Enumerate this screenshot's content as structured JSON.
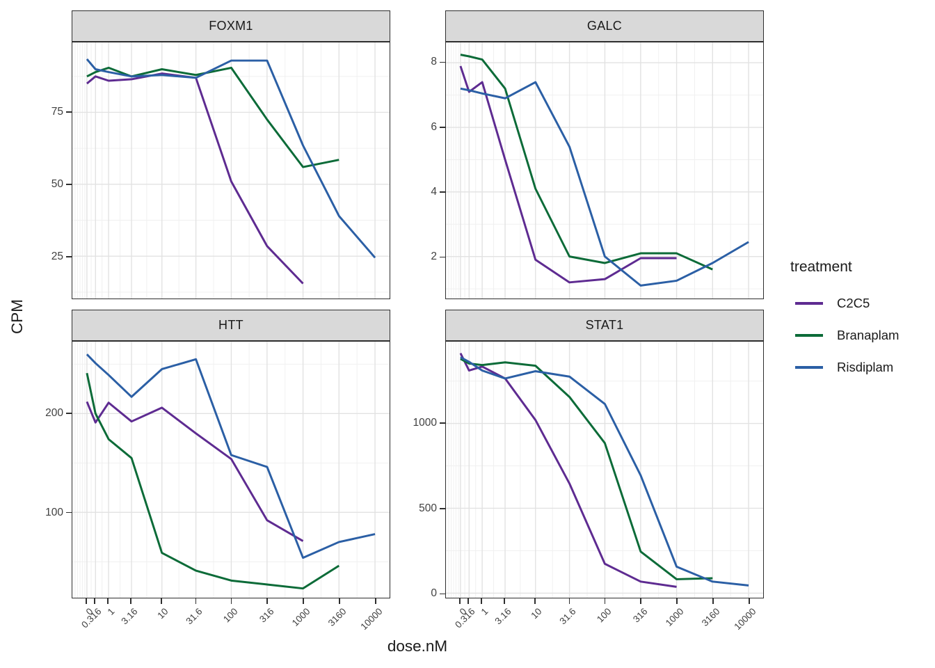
{
  "figure": {
    "y_axis_label": "CPM",
    "x_axis_label": "dose.nM",
    "x_tick_labels": [
      "0",
      "0.316",
      "1",
      "3.16",
      "10",
      "31.6",
      "100",
      "316",
      "1000",
      "3160",
      "10000"
    ],
    "doses": [
      0,
      0.316,
      1,
      3.16,
      10,
      31.6,
      100,
      316,
      1000,
      3160,
      10000
    ]
  },
  "legend": {
    "title": "treatment",
    "items": [
      {
        "label": "C2C5",
        "color": "#5e2b91"
      },
      {
        "label": "Branaplam",
        "color": "#0c6b38"
      },
      {
        "label": "Risdiplam",
        "color": "#2b5fa5"
      }
    ]
  },
  "chart_data": [
    {
      "type": "line",
      "title": "FOXM1",
      "xlabel": "dose.nM",
      "ylabel": "CPM",
      "x_scale": "log10(dose+1)",
      "ylim": [
        10.3,
        99.3
      ],
      "yticks": [
        25,
        50,
        75
      ],
      "series": [
        {
          "name": "C2C5",
          "values": [
            85,
            87.5,
            86,
            86.5,
            88.5,
            87,
            51,
            28.5,
            15.5
          ]
        },
        {
          "name": "Branaplam",
          "values": [
            87.5,
            89,
            90.5,
            87.5,
            90,
            88,
            90.5,
            72.5,
            56,
            58.5
          ]
        },
        {
          "name": "Risdiplam",
          "values": [
            93.5,
            90,
            89,
            87.5,
            88,
            87,
            93,
            93,
            63.5,
            39,
            24.5
          ]
        }
      ]
    },
    {
      "type": "line",
      "title": "GALC",
      "xlabel": "dose.nM",
      "ylabel": "CPM",
      "x_scale": "log10(dose+1)",
      "ylim": [
        0.7,
        8.63
      ],
      "yticks": [
        2,
        4,
        6,
        8
      ],
      "series": [
        {
          "name": "C2C5",
          "values": [
            7.9,
            7.1,
            7.4,
            5.0,
            1.9,
            1.2,
            1.3,
            1.95,
            1.95
          ]
        },
        {
          "name": "Branaplam",
          "values": [
            8.25,
            8.2,
            8.1,
            7.2,
            4.1,
            2.0,
            1.8,
            2.1,
            2.1,
            1.6
          ]
        },
        {
          "name": "Risdiplam",
          "values": [
            7.2,
            7.15,
            7.05,
            6.9,
            7.4,
            5.4,
            2.0,
            1.1,
            1.25,
            1.8,
            2.45
          ]
        }
      ]
    },
    {
      "type": "line",
      "title": "HTT",
      "xlabel": "dose.nM",
      "ylabel": "CPM",
      "x_scale": "log10(dose+1)",
      "ylim": [
        13.6,
        272.8
      ],
      "yticks": [
        100,
        200
      ],
      "series": [
        {
          "name": "C2C5",
          "values": [
            212,
            191,
            211,
            192,
            206,
            180,
            154,
            92,
            71
          ]
        },
        {
          "name": "Branaplam",
          "values": [
            241,
            200,
            174,
            155,
            59,
            41,
            31,
            27,
            23,
            46
          ]
        },
        {
          "name": "Risdiplam",
          "values": [
            260,
            251,
            239,
            217,
            245,
            255,
            158,
            146,
            54,
            70,
            78
          ]
        }
      ]
    },
    {
      "type": "line",
      "title": "STAT1",
      "xlabel": "dose.nM",
      "ylabel": "CPM",
      "x_scale": "log10(dose+1)",
      "ylim": [
        -27,
        1482
      ],
      "yticks": [
        0,
        500,
        1000
      ],
      "series": [
        {
          "name": "C2C5",
          "values": [
            1414,
            1312,
            1335,
            1265,
            1020,
            646,
            173,
            68,
            37
          ]
        },
        {
          "name": "Branaplam",
          "values": [
            1381,
            1353,
            1344,
            1360,
            1340,
            1156,
            884,
            245,
            82,
            88
          ]
        },
        {
          "name": "Risdiplam",
          "values": [
            1390,
            1363,
            1312,
            1265,
            1308,
            1276,
            1115,
            694,
            156,
            68,
            45
          ]
        }
      ]
    }
  ]
}
